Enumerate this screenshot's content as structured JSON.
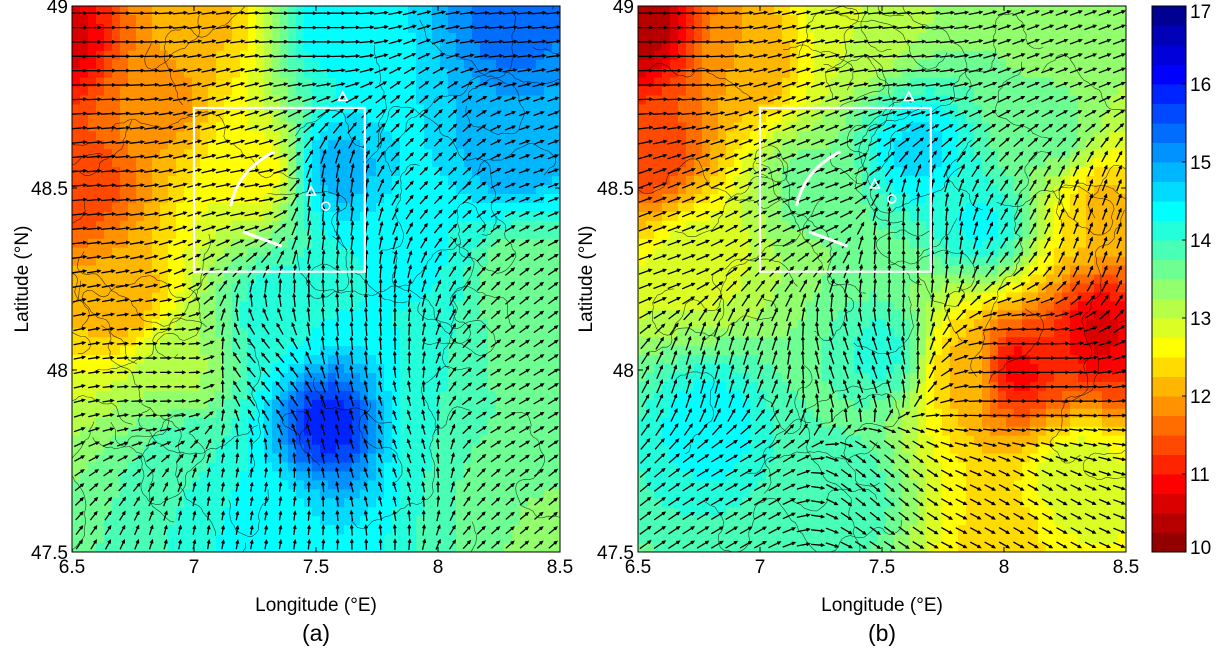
{
  "chart_data": [
    {
      "type": "heatmap",
      "panel_label": "(a)",
      "xlabel": "Longitude (°E)",
      "ylabel": "Latitude (°N)",
      "xlim": [
        6.5,
        8.5
      ],
      "ylim": [
        47.5,
        49
      ],
      "x_ticks": [
        "6.5",
        "7",
        "7.5",
        "8",
        "8.5"
      ],
      "y_ticks": [
        "47.5",
        "48",
        "48.5",
        "49"
      ],
      "x_tick_values": [
        6.5,
        7,
        7.5,
        8,
        8.5
      ],
      "y_tick_values": [
        47.5,
        48,
        48.5,
        49
      ],
      "overlay": "wind vectors and terrain contours",
      "box": {
        "lon": [
          7.0,
          7.7
        ],
        "lat": [
          48.27,
          48.72
        ]
      },
      "markers": [
        {
          "shape": "triangle",
          "lon": 7.61,
          "lat": 48.75
        },
        {
          "shape": "triangle",
          "lon": 7.48,
          "lat": 48.49
        },
        {
          "shape": "circle",
          "lon": 7.54,
          "lat": 48.45
        }
      ],
      "field_centers": [
        {
          "lon": 6.45,
          "lat": 48.9,
          "value": 10.6
        },
        {
          "lon": 6.55,
          "lat": 48.5,
          "value": 11.3
        },
        {
          "lon": 6.85,
          "lat": 48.75,
          "value": 11.8
        },
        {
          "lon": 6.7,
          "lat": 48.2,
          "value": 12.0
        },
        {
          "lon": 7.05,
          "lat": 48.95,
          "value": 12.2
        },
        {
          "lon": 7.25,
          "lat": 48.55,
          "value": 12.6
        },
        {
          "lon": 6.95,
          "lat": 48.0,
          "value": 13.2
        },
        {
          "lon": 7.6,
          "lat": 48.95,
          "value": 14.5
        },
        {
          "lon": 8.3,
          "lat": 48.95,
          "value": 15.4
        },
        {
          "lon": 7.6,
          "lat": 48.55,
          "value": 14.9
        },
        {
          "lon": 8.3,
          "lat": 48.6,
          "value": 15.0
        },
        {
          "lon": 7.9,
          "lat": 48.3,
          "value": 14.3
        },
        {
          "lon": 8.35,
          "lat": 48.25,
          "value": 13.5
        },
        {
          "lon": 7.35,
          "lat": 48.15,
          "value": 14.2
        },
        {
          "lon": 7.55,
          "lat": 47.85,
          "value": 15.9
        },
        {
          "lon": 7.3,
          "lat": 47.6,
          "value": 14.4
        },
        {
          "lon": 7.0,
          "lat": 47.75,
          "value": 14.0
        },
        {
          "lon": 8.0,
          "lat": 47.85,
          "value": 14.0
        },
        {
          "lon": 8.25,
          "lat": 47.7,
          "value": 13.6
        },
        {
          "lon": 8.45,
          "lat": 47.55,
          "value": 13.4
        },
        {
          "lon": 8.45,
          "lat": 47.95,
          "value": 13.5
        }
      ],
      "wind_centers": [
        {
          "lon": 6.6,
          "lat": 48.9,
          "angle": 0,
          "mag": 1.0
        },
        {
          "lon": 7.5,
          "lat": 48.95,
          "angle": 0,
          "mag": 1.0
        },
        {
          "lon": 8.3,
          "lat": 48.95,
          "angle": 5,
          "mag": 1.0
        },
        {
          "lon": 6.6,
          "lat": 48.5,
          "angle": 5,
          "mag": 1.0
        },
        {
          "lon": 7.25,
          "lat": 48.5,
          "angle": 10,
          "mag": 1.0
        },
        {
          "lon": 7.55,
          "lat": 48.45,
          "angle": 85,
          "mag": 1.0
        },
        {
          "lon": 7.6,
          "lat": 48.15,
          "angle": 95,
          "mag": 0.9
        },
        {
          "lon": 7.3,
          "lat": 48.0,
          "angle": 130,
          "mag": 0.8
        },
        {
          "lon": 8.0,
          "lat": 48.6,
          "angle": 45,
          "mag": 0.6
        },
        {
          "lon": 8.4,
          "lat": 48.6,
          "angle": 20,
          "mag": 0.6
        },
        {
          "lon": 6.9,
          "lat": 48.0,
          "angle": 0,
          "mag": 0.6
        },
        {
          "lon": 7.8,
          "lat": 47.8,
          "angle": 110,
          "mag": 0.5
        },
        {
          "lon": 8.3,
          "lat": 47.9,
          "angle": 30,
          "mag": 0.7
        },
        {
          "lon": 8.4,
          "lat": 47.55,
          "angle": 40,
          "mag": 0.6
        },
        {
          "lon": 7.2,
          "lat": 47.6,
          "angle": 80,
          "mag": 0.4
        }
      ]
    },
    {
      "type": "heatmap",
      "panel_label": "(b)",
      "xlabel": "Longitude (°E)",
      "ylabel": "Latitude (°N)",
      "xlim": [
        6.5,
        8.5
      ],
      "ylim": [
        47.5,
        49
      ],
      "x_ticks": [
        "6.5",
        "7",
        "7.5",
        "8",
        "8.5"
      ],
      "y_ticks": [
        "47.5",
        "48",
        "48.5",
        "49"
      ],
      "x_tick_values": [
        6.5,
        7,
        7.5,
        8,
        8.5
      ],
      "y_tick_values": [
        47.5,
        48,
        48.5,
        49
      ],
      "overlay": "wind vectors and terrain contours",
      "box": {
        "lon": [
          7.0,
          7.7
        ],
        "lat": [
          48.27,
          48.72
        ]
      },
      "markers": [
        {
          "shape": "triangle",
          "lon": 7.61,
          "lat": 48.75
        },
        {
          "shape": "triangle",
          "lon": 7.47,
          "lat": 48.51
        },
        {
          "shape": "circle",
          "lon": 7.54,
          "lat": 48.47
        }
      ],
      "field_centers": [
        {
          "lon": 6.5,
          "lat": 48.95,
          "value": 10.3
        },
        {
          "lon": 6.55,
          "lat": 48.6,
          "value": 11.3
        },
        {
          "lon": 6.95,
          "lat": 48.85,
          "value": 12.0
        },
        {
          "lon": 7.4,
          "lat": 48.95,
          "value": 13.0
        },
        {
          "lon": 8.2,
          "lat": 48.95,
          "value": 13.5
        },
        {
          "lon": 6.75,
          "lat": 48.3,
          "value": 12.9
        },
        {
          "lon": 7.2,
          "lat": 48.5,
          "value": 13.6
        },
        {
          "lon": 7.65,
          "lat": 48.6,
          "value": 14.6
        },
        {
          "lon": 7.9,
          "lat": 48.4,
          "value": 14.3
        },
        {
          "lon": 8.2,
          "lat": 48.65,
          "value": 13.6
        },
        {
          "lon": 8.4,
          "lat": 48.45,
          "value": 12.2
        },
        {
          "lon": 8.05,
          "lat": 48.0,
          "value": 10.9
        },
        {
          "lon": 8.4,
          "lat": 48.1,
          "value": 10.7
        },
        {
          "lon": 7.85,
          "lat": 48.0,
          "value": 12.2
        },
        {
          "lon": 7.5,
          "lat": 48.05,
          "value": 14.1
        },
        {
          "lon": 6.8,
          "lat": 47.85,
          "value": 14.4
        },
        {
          "lon": 7.35,
          "lat": 47.65,
          "value": 14.0
        },
        {
          "lon": 8.0,
          "lat": 47.55,
          "value": 12.4
        },
        {
          "lon": 8.3,
          "lat": 47.7,
          "value": 13.0
        }
      ],
      "wind_centers": [
        {
          "lon": 6.6,
          "lat": 48.9,
          "angle": 0,
          "mag": 1.0
        },
        {
          "lon": 7.6,
          "lat": 48.9,
          "angle": 5,
          "mag": 1.0
        },
        {
          "lon": 8.3,
          "lat": 48.9,
          "angle": 20,
          "mag": 0.8
        },
        {
          "lon": 7.25,
          "lat": 48.5,
          "angle": 20,
          "mag": 0.9
        },
        {
          "lon": 7.6,
          "lat": 48.35,
          "angle": 90,
          "mag": 0.9
        },
        {
          "lon": 7.4,
          "lat": 48.0,
          "angle": 110,
          "mag": 0.9
        },
        {
          "lon": 6.8,
          "lat": 48.0,
          "angle": 75,
          "mag": 1.0
        },
        {
          "lon": 6.9,
          "lat": 47.7,
          "angle": 30,
          "mag": 0.9
        },
        {
          "lon": 7.5,
          "lat": 47.7,
          "angle": -40,
          "mag": 0.8
        },
        {
          "lon": 8.1,
          "lat": 48.0,
          "angle": 0,
          "mag": 1.0
        },
        {
          "lon": 8.4,
          "lat": 48.4,
          "angle": 70,
          "mag": 0.7
        },
        {
          "lon": 8.1,
          "lat": 47.6,
          "angle": -30,
          "mag": 0.7
        },
        {
          "lon": 6.6,
          "lat": 48.3,
          "angle": 20,
          "mag": 0.9
        }
      ]
    }
  ],
  "colorbar": {
    "min": 10,
    "max": 17,
    "ticks": [
      "10",
      "11",
      "12",
      "13",
      "14",
      "15",
      "16",
      "17"
    ],
    "tick_values": [
      10,
      11,
      12,
      13,
      14,
      15,
      16,
      17
    ],
    "colormap": "jet_r",
    "levels": 28
  },
  "overlay_colors": {
    "vectors": "#000000",
    "contours": "#000000",
    "box": "#ffffff",
    "markers": "#ffffff"
  }
}
